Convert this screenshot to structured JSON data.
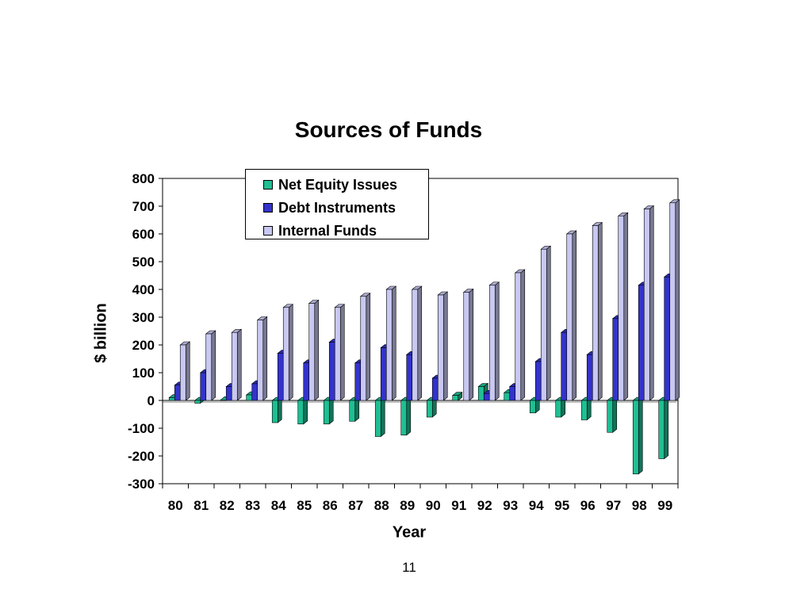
{
  "page": {
    "number": "11"
  },
  "chart_data": {
    "type": "bar",
    "title": "Sources of Funds",
    "xlabel": "Year",
    "ylabel": "$ billion",
    "ylim": [
      -300,
      800
    ],
    "yticks": [
      800,
      700,
      600,
      500,
      400,
      300,
      200,
      100,
      0,
      -100,
      -200,
      -300
    ],
    "categories": [
      "80",
      "81",
      "82",
      "83",
      "84",
      "85",
      "86",
      "87",
      "88",
      "89",
      "90",
      "91",
      "92",
      "93",
      "94",
      "95",
      "96",
      "97",
      "98",
      "99"
    ],
    "legend_position": "top-center",
    "grid": false,
    "series": [
      {
        "name": "Net Equity Issues",
        "color": "#1fbf93",
        "values": [
          10,
          -10,
          2,
          20,
          -80,
          -85,
          -85,
          -75,
          -130,
          -125,
          -60,
          18,
          50,
          28,
          -45,
          -60,
          -70,
          -115,
          -265,
          -210
        ]
      },
      {
        "name": "Debt Instruments",
        "color": "#3333cc",
        "values": [
          55,
          100,
          50,
          60,
          170,
          135,
          210,
          135,
          190,
          165,
          80,
          0,
          25,
          50,
          140,
          245,
          165,
          295,
          415,
          445
        ]
      },
      {
        "name": "Internal Funds",
        "color": "#c8c8f2",
        "values": [
          200,
          240,
          245,
          290,
          335,
          350,
          335,
          375,
          400,
          400,
          380,
          390,
          415,
          460,
          545,
          600,
          630,
          665,
          690,
          712
        ]
      }
    ]
  }
}
